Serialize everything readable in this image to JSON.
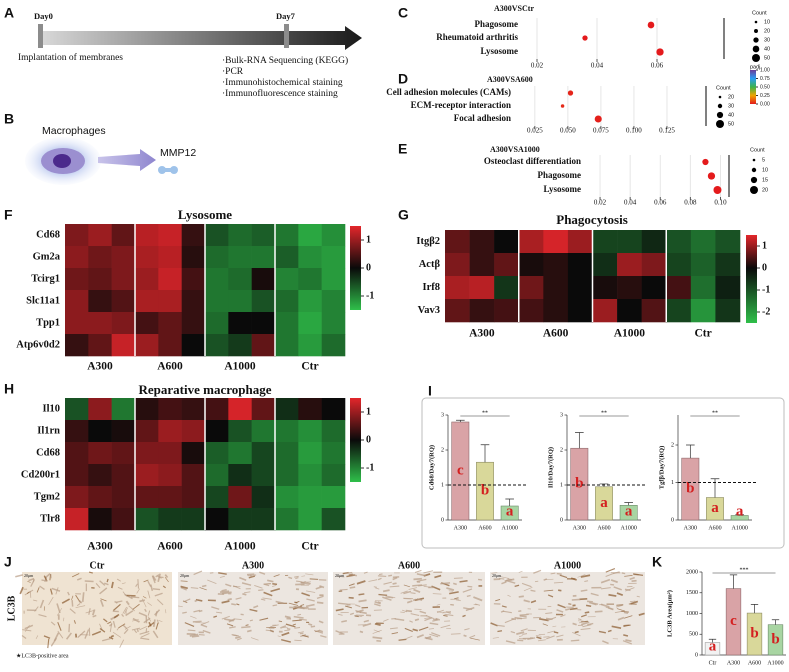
{
  "panel_labels": [
    "A",
    "B",
    "C",
    "D",
    "E",
    "F",
    "G",
    "H",
    "I",
    "J",
    "K"
  ],
  "timeline": {
    "start": "Day0",
    "end": "Day7",
    "start_note": "Implantation of membranes",
    "steps": [
      "·Bulk-RNA Sequencing (KEGG)",
      "·PCR",
      "·Immunohistochemical staining",
      "·Immunofluorescence staining"
    ]
  },
  "schematic": {
    "cell": "Macrophages",
    "product": "MMP12"
  },
  "histology": {
    "ylabel": "LC3B",
    "groups": [
      "Ctr",
      "A300",
      "A600",
      "A1000"
    ],
    "scale_bar": "20μm",
    "legend": "★LC3B-positive area"
  },
  "chart_data": [
    {
      "type": "dot",
      "title": "A300VSCtr",
      "categories": [
        "Phagosome",
        "Rheumatoid arthritis",
        "Lysosome"
      ],
      "values": [
        0.058,
        0.036,
        0.061
      ],
      "counts": [
        40,
        30,
        45
      ],
      "color": "#e41a1c",
      "xlim": [
        0.015,
        0.08
      ],
      "xticks": [
        0.02,
        0.04,
        0.06
      ],
      "size_legend": {
        "title": "Count",
        "values": [
          10,
          20,
          30,
          40,
          50
        ]
      }
    },
    {
      "type": "dot",
      "title": "A300VSA600",
      "categories": [
        "Cell adhesion molecules (CAMs)",
        "ECM-receptor interaction",
        "Focal adhesion"
      ],
      "values": [
        0.052,
        0.046,
        0.073
      ],
      "counts": [
        35,
        25,
        45
      ],
      "padj": [
        0.02,
        0.03,
        0.01
      ],
      "xlim": [
        0.01,
        0.15
      ],
      "xticks": [
        0.025,
        {
          "value": 0.05,
          "label": "0.050"
        },
        0.075,
        {
          "value": 0.1,
          "label": "0.100"
        },
        0.125
      ],
      "size_legend": {
        "title": "Count",
        "values": [
          20,
          30,
          40,
          50
        ]
      },
      "color_legend": {
        "title": "padj",
        "ticks": [
          {
            "value": 1,
            "label": "1.00"
          },
          0.75,
          {
            "value": 0.5,
            "label": "0.50"
          },
          0.25,
          {
            "value": 0,
            "label": "0.00"
          }
        ]
      }
    },
    {
      "type": "dot",
      "title": "A300VSA1000",
      "categories": [
        "Osteoclast differentiation",
        "Phagosome",
        "Lysosome"
      ],
      "values": [
        0.09,
        0.094,
        0.098
      ],
      "counts": [
        15,
        18,
        20
      ],
      "color": "#e41a1c",
      "xlim": [
        0.01,
        0.103
      ],
      "xticks": [
        0.02,
        0.04,
        0.06,
        0.08,
        {
          "value": 0.1,
          "label": "0.10"
        }
      ],
      "size_legend": {
        "title": "Count",
        "values": [
          5,
          10,
          15,
          20
        ]
      }
    },
    {
      "type": "heatmap",
      "title": "Lysosome",
      "rows": [
        "Cd68",
        "Gm2a",
        "Tcirg1",
        "Slc11a1",
        "Tpp1",
        "Atp6v0d2"
      ],
      "groups": [
        "A300",
        "A600",
        "A1000",
        "Ctr"
      ],
      "zlim": [
        -1.5,
        1.5
      ],
      "zticks": [
        1,
        0,
        -1
      ],
      "values": [
        [
          0.8,
          1.0,
          0.6,
          1.2,
          1.3,
          0.3,
          -0.6,
          -0.8,
          -0.7,
          -0.9,
          -1.3,
          -1.1
        ],
        [
          0.9,
          0.7,
          0.8,
          1.1,
          1.2,
          0.2,
          -0.8,
          -0.9,
          -0.9,
          -0.7,
          -1.1,
          -1.2
        ],
        [
          0.7,
          0.6,
          0.8,
          1.0,
          1.3,
          0.4,
          -0.9,
          -0.8,
          0.1,
          -1.0,
          -0.9,
          -1.2
        ],
        [
          0.9,
          0.3,
          0.5,
          1.1,
          1.1,
          0.3,
          -0.9,
          -0.9,
          -0.6,
          -0.8,
          -1.2,
          -1.0
        ],
        [
          0.9,
          0.9,
          0.8,
          0.4,
          0.6,
          0.3,
          -0.8,
          0.0,
          0.0,
          -0.9,
          -1.3,
          -1.0
        ],
        [
          0.3,
          0.6,
          1.3,
          1.0,
          0.6,
          0.0,
          -0.6,
          -0.4,
          0.6,
          -0.9,
          -1.2,
          -0.8
        ]
      ]
    },
    {
      "type": "heatmap",
      "title": "Phagocytosis",
      "rows": [
        "Itgβ2",
        "Actβ",
        "Irf8",
        "Vav3"
      ],
      "groups": [
        "A300",
        "A600",
        "A1000",
        "Ctr"
      ],
      "zlim": [
        -2.5,
        1.5
      ],
      "zticks": [
        1,
        0,
        -1,
        -2
      ],
      "values": [
        [
          0.6,
          0.3,
          0.0,
          1.1,
          1.4,
          1.0,
          -0.8,
          -0.8,
          -0.4,
          -1.0,
          -1.4,
          -1.0
        ],
        [
          0.8,
          0.3,
          0.6,
          0.1,
          0.2,
          0.0,
          -0.5,
          1.0,
          0.8,
          -0.8,
          -1.2,
          -0.6
        ],
        [
          1.1,
          1.2,
          -0.6,
          0.7,
          0.2,
          0.0,
          0.1,
          0.2,
          0.0,
          0.4,
          -1.4,
          -0.3
        ],
        [
          0.6,
          0.3,
          0.4,
          0.4,
          0.2,
          0.0,
          1.0,
          0.0,
          0.5,
          -0.8,
          -1.9,
          -0.6
        ]
      ]
    },
    {
      "type": "heatmap",
      "title": "Reparative macrophage",
      "rows": [
        "Il10",
        "Il1rn",
        "Cd68",
        "Cd200r1",
        "Tgm2",
        "Tlr8"
      ],
      "groups": [
        "A300",
        "A600",
        "A1000",
        "Ctr"
      ],
      "zlim": [
        -1.5,
        1.5
      ],
      "zticks": [
        1,
        0,
        -1
      ],
      "values": [
        [
          -0.6,
          0.9,
          -0.9,
          0.2,
          0.4,
          0.3,
          0.4,
          1.4,
          0.6,
          -0.3,
          0.2,
          0.0
        ],
        [
          0.3,
          0.0,
          0.1,
          0.6,
          1.0,
          0.9,
          0.0,
          -0.6,
          -0.9,
          -0.9,
          -1.1,
          -0.8
        ],
        [
          0.5,
          0.7,
          0.6,
          0.8,
          0.8,
          0.1,
          -0.7,
          -0.9,
          -0.5,
          -0.8,
          -1.2,
          -0.9
        ],
        [
          0.5,
          0.3,
          0.5,
          1.0,
          0.9,
          0.5,
          -0.8,
          -0.3,
          -0.5,
          -0.8,
          -1.1,
          -0.8
        ],
        [
          0.8,
          0.6,
          0.5,
          0.6,
          0.6,
          0.5,
          -0.5,
          0.7,
          -0.3,
          -1.1,
          -1.2,
          -1.2
        ],
        [
          1.3,
          0.1,
          0.4,
          -0.6,
          -0.4,
          -0.4,
          0.0,
          -0.4,
          -0.4,
          -0.9,
          -1.2,
          -0.6
        ]
      ]
    },
    {
      "type": "bar",
      "ylabel": "Cd68/Day7(RQ)",
      "categories": [
        "A300",
        "A600",
        "A1000"
      ],
      "values": [
        2.8,
        1.65,
        0.4
      ],
      "errors": [
        0.05,
        0.5,
        0.2
      ],
      "letters": [
        "c",
        "b",
        "a"
      ],
      "significance": "**",
      "colors": [
        "#d9a3a6",
        "#d9d89a",
        "#a8d5a2"
      ],
      "reference": 1,
      "ylim": [
        0,
        3
      ],
      "yticks": [
        0,
        1,
        2,
        3
      ]
    },
    {
      "type": "bar",
      "ylabel": "Il10/Day7(RQ)",
      "categories": [
        "A300",
        "A600",
        "A1000"
      ],
      "values": [
        2.05,
        0.95,
        0.42
      ],
      "errors": [
        0.45,
        0.08,
        0.08
      ],
      "letters": [
        "b",
        "a",
        "a"
      ],
      "significance": "**",
      "colors": [
        "#d9a3a6",
        "#d9d89a",
        "#a8d5a2"
      ],
      "reference": 1,
      "ylim": [
        0,
        3
      ],
      "yticks": [
        0,
        1,
        2,
        3
      ]
    },
    {
      "type": "bar",
      "ylabel": "Tgfβ/Day7(RQ)",
      "categories": [
        "A300",
        "A600",
        "A1000"
      ],
      "values": [
        1.65,
        0.6,
        0.12
      ],
      "errors": [
        0.35,
        0.5,
        0.02
      ],
      "letters": [
        "b",
        "a",
        "a"
      ],
      "significance": "**",
      "colors": [
        "#d9a3a6",
        "#d9d89a",
        "#a8d5a2"
      ],
      "reference": 1,
      "ylim": [
        0,
        2.8
      ],
      "yticks": [
        0,
        1,
        2
      ]
    },
    {
      "type": "bar",
      "ylabel": "LC3B Area(μm²)",
      "categories": [
        "Ctr",
        "A300",
        "A600",
        "A1000"
      ],
      "values": [
        300,
        1600,
        1010,
        730
      ],
      "errors": [
        80,
        330,
        210,
        120
      ],
      "letters": [
        "a",
        "c",
        "b",
        "b"
      ],
      "significance": "***",
      "colors": [
        "#f2f2f2",
        "#d9a3a6",
        "#d9d89a",
        "#a8d5a2"
      ],
      "ylim": [
        0,
        2000
      ],
      "yticks": [
        0,
        500,
        1000,
        1500,
        2000
      ]
    }
  ]
}
